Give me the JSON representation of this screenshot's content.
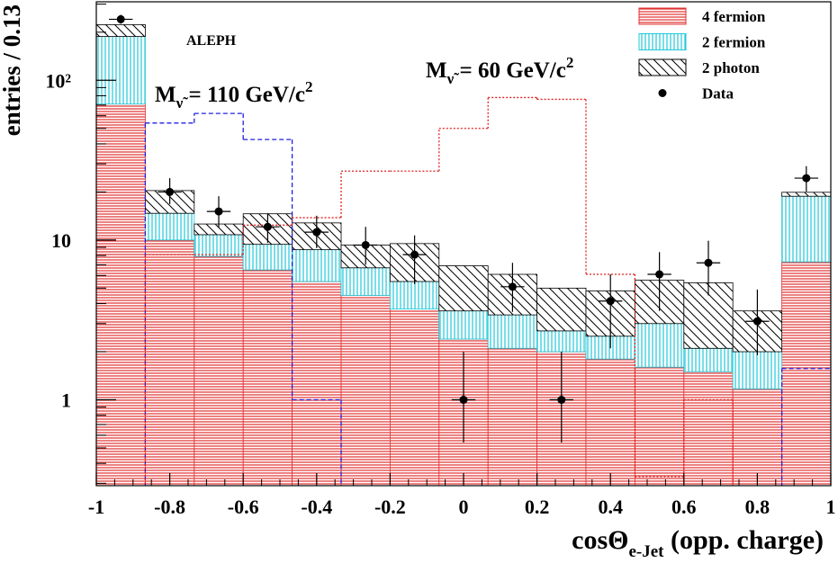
{
  "chart_data": {
    "type": "histogram",
    "ylabel": "entries / 0.13",
    "xlabel": {
      "text": "cosΘ",
      "sub": "e-Jet",
      "after": " (opp. charge)"
    },
    "bins": [
      -1,
      -0.8667,
      -0.7333,
      -0.6,
      -0.4667,
      -0.3333,
      -0.2,
      -0.0667,
      0.0667,
      0.2,
      0.3333,
      0.4667,
      0.6,
      0.7333,
      0.8667,
      1
    ],
    "xlim": [
      -1,
      1
    ],
    "ylim": [
      0.29,
      310
    ],
    "log_y": true,
    "xticks": [
      -1,
      -0.8,
      -0.6,
      -0.4,
      -0.2,
      0,
      0.2,
      0.4,
      0.6,
      0.8,
      1
    ],
    "xticks_minor": [
      -0.95,
      -0.9,
      -0.85,
      -0.75,
      -0.7,
      -0.65,
      -0.55,
      -0.5,
      -0.45,
      -0.35,
      -0.3,
      -0.25,
      -0.15,
      -0.1,
      -0.05,
      0.05,
      0.1,
      0.15,
      0.25,
      0.3,
      0.35,
      0.45,
      0.5,
      0.55,
      0.65,
      0.7,
      0.75,
      0.85,
      0.9,
      0.95
    ],
    "yticks": [
      1,
      10,
      {
        "value": 100,
        "label": "10²"
      }
    ],
    "yticks_minor": [
      0.3,
      0.4,
      0.5,
      0.6,
      0.7,
      0.8,
      0.9,
      2,
      3,
      4,
      5,
      6,
      7,
      8,
      9,
      20,
      30,
      40,
      50,
      60,
      70,
      80,
      90,
      200,
      300
    ],
    "legend": "upper right",
    "series": [
      {
        "name": "4 fermion",
        "color": "#e03030",
        "pattern": "horizontal",
        "values": [
          71,
          10,
          7.9,
          6.5,
          5.5,
          4.5,
          3.7,
          2.4,
          2.1,
          2.0,
          1.8,
          1.6,
          1.5,
          1.17,
          7.3
        ]
      },
      {
        "name": "2 fermion",
        "color": "#20c8d8",
        "pattern": "vertical",
        "values": [
          117,
          4.7,
          2.9,
          2.9,
          3.2,
          2.2,
          1.8,
          1.2,
          1.3,
          0.7,
          0.7,
          1.4,
          0.6,
          0.83,
          11.5
        ]
      },
      {
        "name": "2 photon",
        "color": "#000000",
        "pattern": "diagonal",
        "values": [
          35,
          5.7,
          1.8,
          5.2,
          4.1,
          2.6,
          4.0,
          3.3,
          2.7,
          2.3,
          2.3,
          2.6,
          3.3,
          1.6,
          1.1
        ]
      }
    ],
    "data": {
      "name": "Data",
      "color": "#000000",
      "values": [
        241,
        20,
        15.1,
        12.1,
        11.2,
        9.3,
        8.1,
        1,
        5.1,
        1,
        4.15,
        6.1,
        7.2,
        3.1,
        24.4
      ],
      "lower": [
        226,
        16.8,
        12,
        9.6,
        8.9,
        7.0,
        5.3,
        0.54,
        3.55,
        0.54,
        2.1,
        3.6,
        4.5,
        1.9,
        20.1
      ],
      "upper": [
        257,
        24.4,
        18.8,
        14.7,
        14.2,
        12.1,
        10.7,
        2.0,
        7.2,
        2.0,
        6.1,
        8.4,
        9.9,
        4.9,
        29
      ]
    },
    "signals": [
      {
        "color": "#2020e0",
        "dash": "dashed",
        "values": [
          null,
          54,
          62,
          42.6,
          1.0,
          null,
          null,
          null,
          null,
          null,
          null,
          null,
          null,
          null,
          1.57
        ]
      },
      {
        "color": "#e02020",
        "dash": "dotted",
        "values": [
          null,
          8.1,
          8.1,
          12.4,
          13.8,
          27,
          27,
          50,
          78,
          76,
          6.1,
          0.33,
          1.0,
          null,
          null
        ]
      }
    ],
    "annotations": [
      {
        "text": "ALEPH"
      },
      {
        "text": "M",
        "sub": "ν̃",
        "after": " = 110 GeV/c",
        "sup": "2"
      },
      {
        "text": "M",
        "sub": "ν̃",
        "after": " = 60 GeV/c",
        "sup": "2"
      }
    ]
  }
}
